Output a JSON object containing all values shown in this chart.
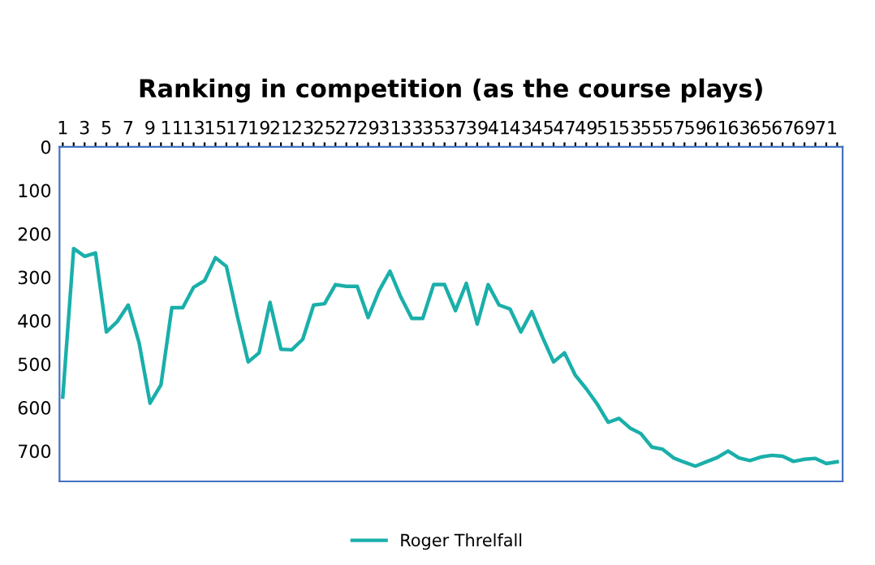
{
  "chart_data": {
    "type": "line",
    "title": "Ranking in competition (as the course plays)",
    "categories": [
      "1",
      null,
      "3",
      null,
      "5",
      null,
      "7",
      null,
      "9",
      null,
      "11",
      null,
      "13",
      null,
      "15",
      null,
      "17",
      null,
      "19",
      null,
      "21",
      null,
      "23",
      null,
      "25",
      null,
      "27",
      null,
      "29",
      null,
      "31",
      null,
      "33",
      null,
      "35",
      null,
      "37",
      null,
      "39",
      null,
      "41",
      null,
      "43",
      null,
      "45",
      null,
      "47",
      null,
      "49",
      null,
      "51",
      null,
      "53",
      null,
      "55",
      null,
      "57",
      null,
      "59",
      null,
      "61",
      null,
      "63",
      null,
      "65",
      null,
      "67",
      null,
      "69",
      null,
      "71",
      null
    ],
    "series": [
      {
        "name": "Roger Threlfall",
        "color": "#1aafaa",
        "values": [
          576,
          234,
          252,
          244,
          426,
          402,
          364,
          451,
          590,
          548,
          370,
          370,
          323,
          308,
          255,
          275,
          389,
          495,
          474,
          358,
          466,
          467,
          443,
          364,
          361,
          317,
          321,
          321,
          393,
          331,
          286,
          346,
          395,
          395,
          317,
          317,
          377,
          314,
          408,
          317,
          364,
          373,
          426,
          379,
          439,
          495,
          474,
          526,
          557,
          592,
          634,
          625,
          647,
          660,
          691,
          696,
          716,
          726,
          735,
          725,
          715,
          700,
          716,
          722,
          714,
          710,
          712,
          724,
          719,
          717,
          729,
          725
        ]
      }
    ],
    "ylim": [
      770,
      0
    ],
    "yticks": [
      0,
      100,
      200,
      300,
      400,
      500,
      600,
      700
    ],
    "grid": false,
    "legend": "bottom",
    "marker": "none",
    "line_style": "solid"
  }
}
